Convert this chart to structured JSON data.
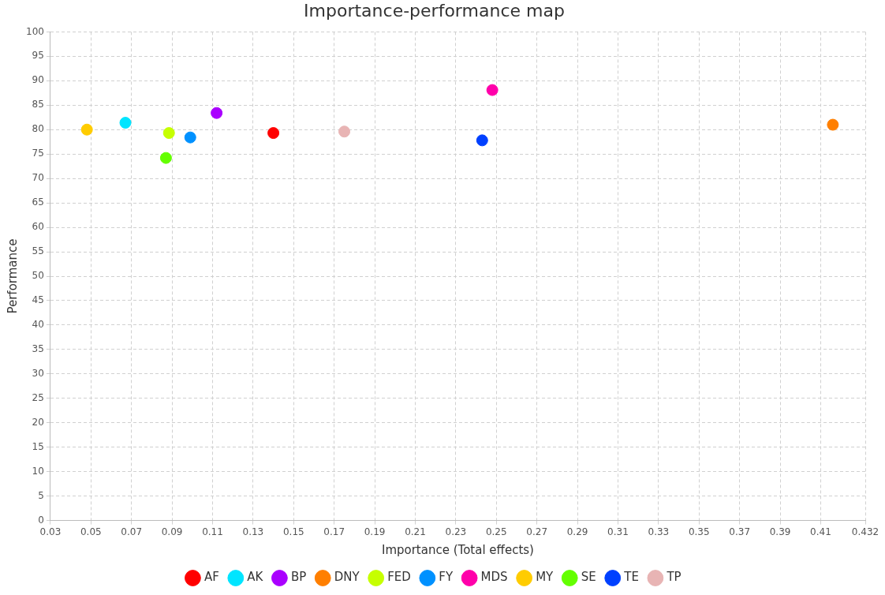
{
  "chart_data": {
    "type": "scatter",
    "title": "Importance-performance map",
    "xlabel": "Importance (Total effects)",
    "ylabel": "Performance",
    "xlim": [
      0.03,
      0.432
    ],
    "xticks": [
      0.03,
      0.05,
      0.07,
      0.09,
      0.11,
      0.13,
      0.15,
      0.17,
      0.19,
      0.21,
      0.23,
      0.25,
      0.27,
      0.29,
      0.31,
      0.33,
      0.35,
      0.37,
      0.39,
      0.41,
      0.432
    ],
    "ylim": [
      0,
      100
    ],
    "yticks": [
      0,
      5,
      10,
      15,
      20,
      25,
      30,
      35,
      40,
      45,
      50,
      55,
      60,
      65,
      70,
      75,
      80,
      85,
      90,
      95,
      100
    ],
    "grid": true,
    "legend": "bottom",
    "marker": "circle",
    "series": [
      {
        "name": "AF",
        "color": "#ff0000",
        "x": [
          0.14
        ],
        "values": [
          79.3
        ]
      },
      {
        "name": "AK",
        "color": "#00e5ff",
        "x": [
          0.067
        ],
        "values": [
          81.4
        ]
      },
      {
        "name": "BP",
        "color": "#aa00ff",
        "x": [
          0.112
        ],
        "values": [
          83.4
        ]
      },
      {
        "name": "DNY",
        "color": "#ff7f00",
        "x": [
          0.416
        ],
        "values": [
          81.0
        ]
      },
      {
        "name": "FED",
        "color": "#c6ff00",
        "x": [
          0.0885
        ],
        "values": [
          79.3
        ]
      },
      {
        "name": "FY",
        "color": "#0091ff",
        "x": [
          0.099
        ],
        "values": [
          78.4
        ]
      },
      {
        "name": "MDS",
        "color": "#ff00aa",
        "x": [
          0.248
        ],
        "values": [
          88.1
        ]
      },
      {
        "name": "MY",
        "color": "#ffcc00",
        "x": [
          0.048
        ],
        "values": [
          80.0
        ]
      },
      {
        "name": "SE",
        "color": "#64ff00",
        "x": [
          0.087
        ],
        "values": [
          74.2
        ]
      },
      {
        "name": "TE",
        "color": "#0040ff",
        "x": [
          0.243
        ],
        "values": [
          77.8
        ]
      },
      {
        "name": "TP",
        "color": "#e8b4b4",
        "x": [
          0.175
        ],
        "values": [
          79.6
        ]
      }
    ]
  }
}
